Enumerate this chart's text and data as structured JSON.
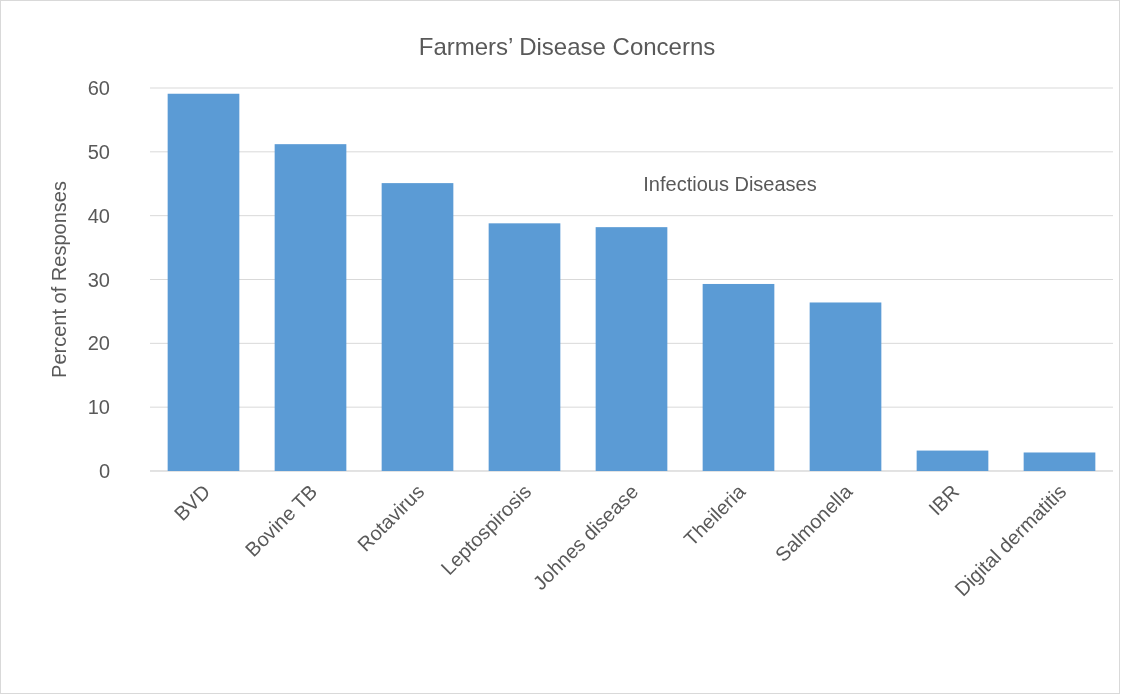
{
  "chart_data": {
    "type": "bar",
    "title": "Farmers’ Disease Concerns",
    "ylabel": "Percent of Responses",
    "annotations": [
      "Infectious Diseases"
    ],
    "categories": [
      "BVD",
      "Bovine TB",
      "Rotavirus",
      "Leptospirosis",
      "Johnes disease",
      "Theileria",
      "Salmonella",
      "IBR",
      "Digital dermatitis"
    ],
    "values": [
      59.1,
      51.2,
      45.1,
      38.8,
      38.2,
      29.3,
      26.4,
      3.2,
      2.9
    ],
    "color": "#5b9bd5",
    "ylim": [
      0,
      60
    ],
    "yticks": [
      0,
      10,
      20,
      30,
      40,
      50,
      60
    ],
    "grid": "y"
  }
}
